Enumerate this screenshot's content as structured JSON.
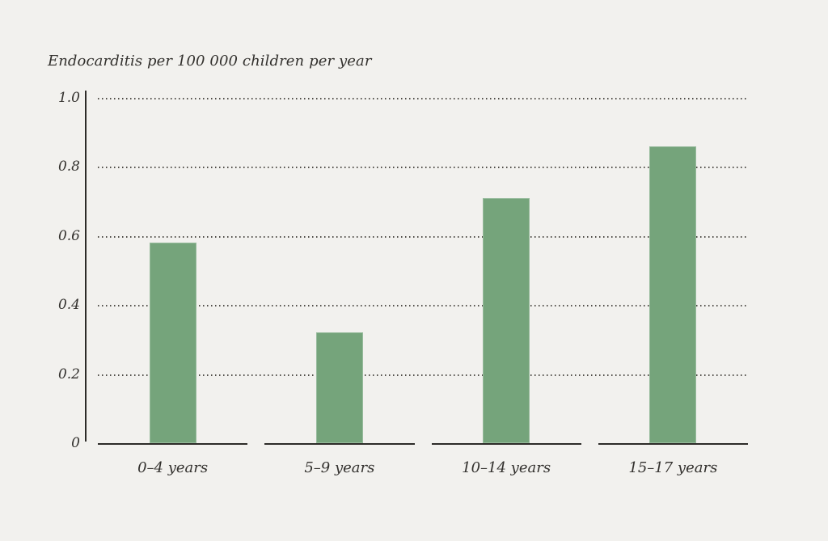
{
  "page": {
    "background_color": "#f2f1ee"
  },
  "chart_data": {
    "type": "bar",
    "title": "Endocarditis per 100 000 children per year",
    "categories": [
      "0–4 years",
      "5–9 years",
      "10–14 years",
      "15–17 years"
    ],
    "values": [
      0.58,
      0.32,
      0.71,
      0.86
    ],
    "xlabel": "",
    "ylabel": "",
    "ylim": [
      0,
      1.0
    ],
    "ytick_labels": [
      "1.0",
      "0.8",
      "0.6",
      "0.4",
      "0.2",
      "0"
    ],
    "yticks": [
      1.0,
      0.8,
      0.6,
      0.4,
      0.2,
      0
    ],
    "grid": "horizontal-dotted",
    "legend": "none",
    "bar_color": "#75a47b",
    "axis_color": "#2d2b28",
    "grid_dot_color": "#4f4c47",
    "text_color": "#33312e"
  }
}
